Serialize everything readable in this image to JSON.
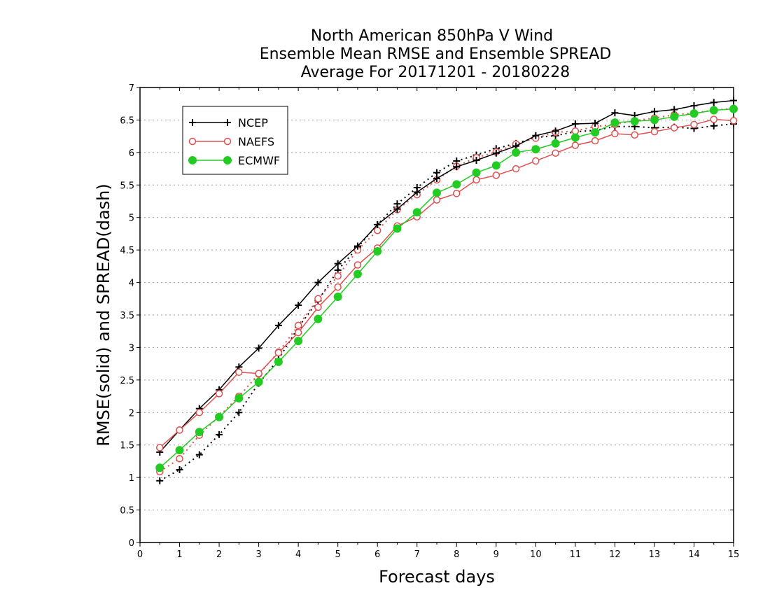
{
  "chart_data": {
    "type": "line",
    "title_lines": [
      "North American 850hPa V Wind",
      "Ensemble Mean RMSE and Ensemble SPREAD",
      "Average For 20171201 - 20180228"
    ],
    "xlabel": "Forecast days",
    "ylabel": "RMSE(solid) and SPREAD(dash)",
    "xlim": [
      0,
      15
    ],
    "ylim": [
      0,
      7
    ],
    "x_ticks": [
      "0",
      "1",
      "2",
      "3",
      "4",
      "5",
      "6",
      "7",
      "8",
      "9",
      "10",
      "11",
      "12",
      "13",
      "14",
      "15"
    ],
    "y_ticks": [
      "0",
      "0.5",
      "1",
      "1.5",
      "2",
      "2.5",
      "3",
      "3.5",
      "4",
      "4.5",
      "5",
      "5.5",
      "6",
      "6.5",
      "7"
    ],
    "grid": "horizontal dotted",
    "legend_position": "top-left",
    "x": [
      0.5,
      1,
      1.5,
      2,
      2.5,
      3,
      3.5,
      4,
      4.5,
      5,
      5.5,
      6,
      6.5,
      7,
      7.5,
      8,
      8.5,
      9,
      9.5,
      10,
      10.5,
      11,
      11.5,
      12,
      12.5,
      13,
      13.5,
      14,
      14.5,
      15
    ],
    "colors": {
      "NCEP": "#000000",
      "NAEFS": "#e05050",
      "ECMWF": "#22cc22"
    },
    "series": [
      {
        "name": "NCEP",
        "marker": "plus",
        "rmse": [
          1.39,
          1.73,
          2.06,
          2.35,
          2.7,
          2.99,
          3.34,
          3.65,
          4.0,
          4.29,
          4.56,
          4.89,
          5.13,
          5.39,
          5.6,
          5.78,
          5.88,
          5.99,
          6.1,
          6.26,
          6.33,
          6.44,
          6.45,
          6.61,
          6.57,
          6.63,
          6.66,
          6.72,
          6.77,
          6.8
        ],
        "spread": [
          0.95,
          1.12,
          1.35,
          1.66,
          2.0,
          2.45,
          2.82,
          3.31,
          3.72,
          4.19,
          4.54,
          4.89,
          5.21,
          5.46,
          5.69,
          5.87,
          5.96,
          6.06,
          6.14,
          6.23,
          6.26,
          6.32,
          6.34,
          6.4,
          6.4,
          6.38,
          6.39,
          6.37,
          6.41,
          6.44
        ]
      },
      {
        "name": "NAEFS",
        "marker": "open-circle",
        "rmse": [
          1.46,
          1.73,
          2.0,
          2.29,
          2.62,
          2.6,
          2.92,
          3.23,
          3.62,
          3.93,
          4.27,
          4.53,
          4.87,
          5.01,
          5.27,
          5.37,
          5.58,
          5.65,
          5.75,
          5.87,
          5.99,
          6.11,
          6.18,
          6.29,
          6.27,
          6.32,
          6.38,
          6.43,
          6.51,
          6.49
        ],
        "spread": [
          1.09,
          1.29,
          1.65,
          1.94,
          2.25,
          2.59,
          2.93,
          3.34,
          3.75,
          4.1,
          4.5,
          4.8,
          5.12,
          5.35,
          5.58,
          5.79,
          5.92,
          6.01,
          6.13,
          6.22,
          6.31,
          6.33,
          6.4,
          6.43,
          6.49,
          6.53,
          6.58,
          6.61,
          6.65,
          6.68
        ]
      },
      {
        "name": "ECMWF",
        "marker": "filled-circle",
        "rmse": [
          1.15,
          1.42,
          1.7,
          1.93,
          2.22,
          2.47,
          2.78,
          3.1,
          3.44,
          3.78,
          4.13,
          4.48,
          4.83,
          5.08,
          5.38,
          5.51,
          5.69,
          5.8,
          6.0,
          6.05,
          6.14,
          6.23,
          6.31,
          6.46,
          6.48,
          6.5,
          6.55,
          6.6,
          6.65,
          6.67
        ]
      }
    ]
  }
}
